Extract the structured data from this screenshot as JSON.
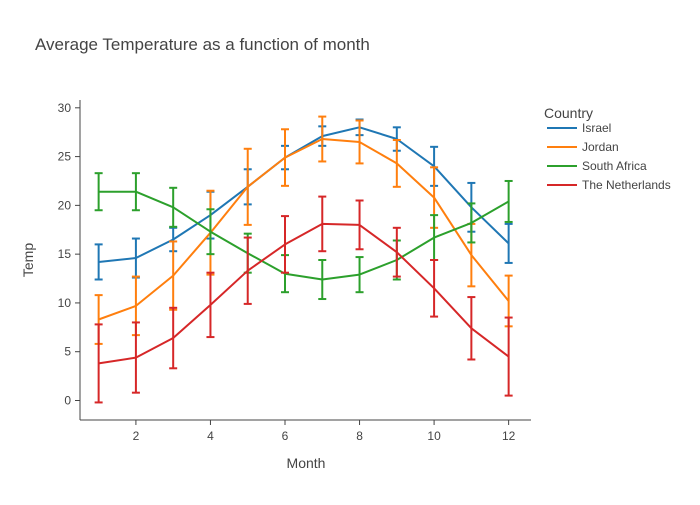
{
  "chart_data": {
    "type": "line",
    "title": "Average Temperature as a function of month",
    "xlabel": "Month",
    "ylabel": "Temp",
    "xlim": [
      0.5,
      12.6
    ],
    "ylim": [
      -2,
      30.8
    ],
    "x_ticks": [
      2,
      4,
      6,
      8,
      10,
      12
    ],
    "y_ticks": [
      0,
      5,
      10,
      15,
      20,
      25,
      30
    ],
    "grid": false,
    "legend": {
      "title": "Country",
      "position": "right"
    },
    "x": [
      1,
      2,
      3,
      4,
      5,
      6,
      7,
      8,
      9,
      10,
      11,
      12
    ],
    "series": [
      {
        "name": "Israel",
        "color": "#1f77b4",
        "values": [
          14.2,
          14.6,
          16.5,
          19.0,
          21.9,
          24.9,
          27.1,
          28.0,
          26.8,
          24.0,
          19.8,
          16.1
        ],
        "error": [
          1.8,
          2.0,
          1.2,
          2.4,
          1.8,
          1.2,
          1.0,
          0.8,
          1.2,
          2.0,
          2.5,
          2.0
        ]
      },
      {
        "name": "Jordan",
        "color": "#ff7f0e",
        "values": [
          8.3,
          9.7,
          12.8,
          17.2,
          21.9,
          24.9,
          26.8,
          26.5,
          24.3,
          20.8,
          14.9,
          10.2
        ],
        "error": [
          2.5,
          3.0,
          3.5,
          4.3,
          3.9,
          2.9,
          2.3,
          2.2,
          2.4,
          3.1,
          3.2,
          2.6
        ]
      },
      {
        "name": "South Africa",
        "color": "#2ca02c",
        "values": [
          21.4,
          21.4,
          19.8,
          17.3,
          15.1,
          13.0,
          12.4,
          12.9,
          14.4,
          16.7,
          18.2,
          20.4
        ],
        "error": [
          1.9,
          1.9,
          2.0,
          2.3,
          2.0,
          1.9,
          2.0,
          1.8,
          2.0,
          2.3,
          2.0,
          2.1
        ]
      },
      {
        "name": "The Netherlands",
        "color": "#d62728",
        "values": [
          3.8,
          4.4,
          6.4,
          9.8,
          13.3,
          16.0,
          18.1,
          18.0,
          15.2,
          11.5,
          7.4,
          4.5
        ],
        "error": [
          4.0,
          3.6,
          3.1,
          3.3,
          3.4,
          2.9,
          2.8,
          2.5,
          2.5,
          2.9,
          3.2,
          4.0
        ]
      }
    ]
  }
}
